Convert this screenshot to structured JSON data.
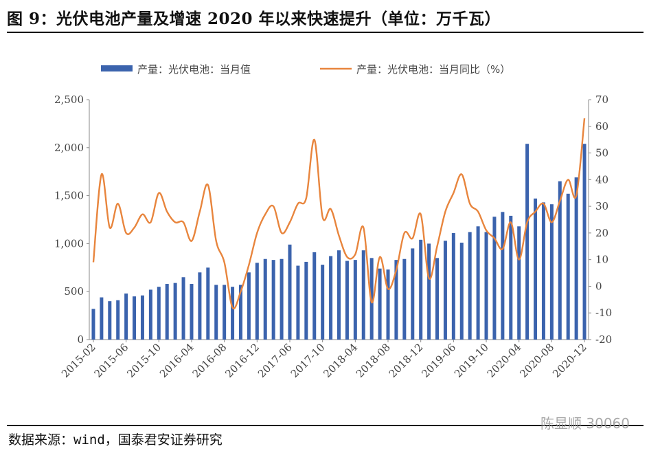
{
  "header": {
    "title": "图 9：光伏电池产量及增速 2020 年以来快速提升（单位：万千瓦）"
  },
  "footer": {
    "source": "数据来源：wind，国泰君安证券研究"
  },
  "watermark": {
    "text": "陈显顺 30060"
  },
  "colors": {
    "bar": "#3b63ad",
    "line": "#e8853d",
    "axis": "#888888",
    "text": "#444444"
  },
  "chart_data": {
    "type": "bar+line",
    "legend": {
      "position": "top",
      "bar_label": "产量：光伏电池：当月值",
      "line_label": "产量：光伏电池：当月同比（%）"
    },
    "ylim_left": [
      0,
      2500
    ],
    "yticks_left": [
      "0",
      "500",
      "1,000",
      "1,500",
      "2,000",
      "2,500"
    ],
    "ylim_right": [
      -20,
      70
    ],
    "yticks_right": [
      "-20",
      "-10",
      "0",
      "10",
      "20",
      "30",
      "40",
      "50",
      "60",
      "70"
    ],
    "xtick_labels": [
      "2015-02",
      "2015-06",
      "2015-10",
      "2016-04",
      "2016-08",
      "2016-12",
      "2017-06",
      "2017-10",
      "2018-04",
      "2018-08",
      "2018-12",
      "2019-06",
      "2019-10",
      "2020-04",
      "2020-08",
      "2020-12"
    ],
    "series": [
      {
        "name": "产量：光伏电池：当月值",
        "type": "bar",
        "axis": "left",
        "values": [
          320,
          440,
          400,
          410,
          480,
          450,
          460,
          520,
          550,
          580,
          590,
          650,
          580,
          700,
          750,
          570,
          570,
          550,
          570,
          700,
          800,
          840,
          830,
          840,
          990,
          770,
          810,
          910,
          780,
          870,
          930,
          820,
          830,
          930,
          850,
          740,
          730,
          830,
          840,
          950,
          1040,
          1000,
          850,
          1030,
          1110,
          1010,
          1120,
          1180,
          1120,
          1280,
          1330,
          1290,
          1180,
          2040,
          1470,
          1430,
          1410,
          1650,
          1520,
          1690,
          2040
        ]
      },
      {
        "name": "产量：光伏电池：当月同比（%）",
        "type": "line",
        "axis": "right",
        "values": [
          9,
          42,
          22,
          31,
          20,
          22,
          27,
          24,
          35,
          28,
          24,
          24,
          17,
          28,
          38,
          17,
          9,
          -8,
          -2,
          8,
          20,
          27,
          30,
          20,
          24,
          31,
          33,
          55,
          26,
          29,
          19,
          11,
          12,
          22,
          -6,
          11,
          -1,
          6,
          20,
          18,
          27,
          3,
          15,
          28,
          35,
          42,
          31,
          28,
          21,
          18,
          14,
          24,
          10,
          24,
          28,
          31,
          24,
          32,
          40,
          34,
          63
        ]
      }
    ]
  }
}
